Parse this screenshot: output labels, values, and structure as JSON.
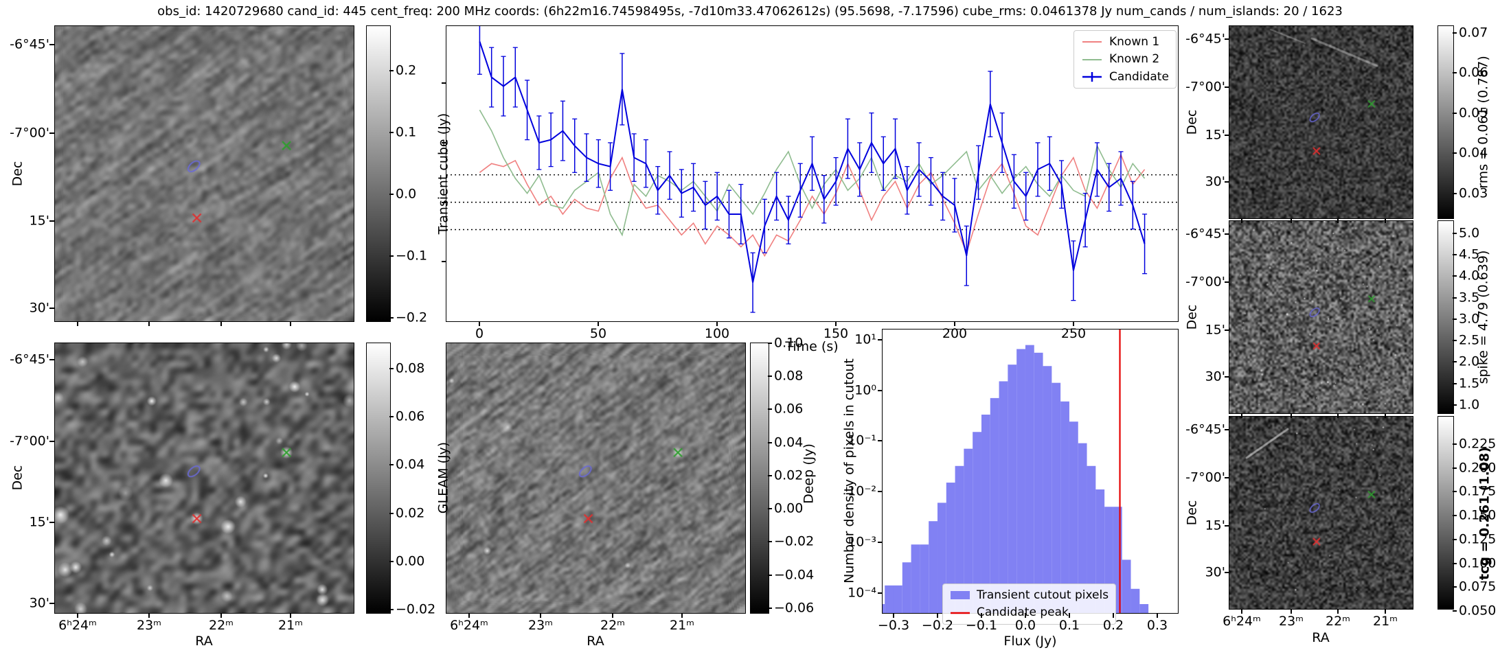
{
  "title": "obs_id: 1420729680 cand_id: 445 cent_freq: 200 MHz coords: (6h22m16.74598495s, -7d10m33.47062612s) (95.5698, -7.17596) cube_rms: 0.0461378 Jy num_cands / num_islands: 20 / 1623",
  "sky": {
    "dec_label": "Dec",
    "ra_label": "RA",
    "dec_ticks": [
      "-6°45'",
      "-7°00'",
      "15'",
      "30'"
    ],
    "ra_ticks": [
      "6ʰ24ᵐ",
      "23ᵐ",
      "22ᵐ",
      "21ᵐ"
    ]
  },
  "colorbars": {
    "transient": {
      "label": "Transient cube (Jy)",
      "ticks": [
        "0.2",
        "0.1",
        "0.0",
        "−0.1",
        "−0.2"
      ]
    },
    "gleam": {
      "label": "GLEAM (Jy)",
      "ticks": [
        "0.08",
        "0.06",
        "0.04",
        "0.02",
        "0.00",
        "−0.02"
      ]
    },
    "deep": {
      "label": "Deep (Jy)",
      "ticks": [
        "0.10",
        "0.08",
        "0.06",
        "0.04",
        "0.02",
        "0.00",
        "−0.02",
        "−0.04",
        "−0.06"
      ]
    },
    "rms": {
      "label": "rms = 0.061 (0.787)",
      "ticks": [
        "0.07",
        "0.06",
        "0.05",
        "0.04",
        "0.03"
      ]
    },
    "spike": {
      "label": "spike = 4.79 (0.639)",
      "ticks": [
        "5.0",
        "4.5",
        "4.0",
        "3.5",
        "3.0",
        "2.5",
        "2.0",
        "1.5",
        "1.0"
      ]
    },
    "tcg": {
      "label": "tcg = 0.261 (1.08)",
      "ticks": [
        "0.225",
        "0.200",
        "0.175",
        "0.150",
        "0.125",
        "0.100",
        "0.075",
        "0.050"
      ]
    }
  },
  "cutout_markers": {
    "known1": {
      "marker": "x",
      "color": "#e03030",
      "fx": 0.475,
      "fy": 0.65
    },
    "known2": {
      "marker": "x",
      "color": "#2f9e2f",
      "fx": 0.775,
      "fy": 0.405
    },
    "candidate": {
      "marker": "ellipse",
      "color": "#6a6ad8",
      "fx": 0.465,
      "fy": 0.475
    }
  },
  "chart_data": [
    {
      "type": "line",
      "xlabel": "Time (s)",
      "ylabel": "Transient cube (Jy)",
      "xlim": [
        -14,
        294
      ],
      "ylim": [
        -0.2,
        0.296
      ],
      "xticks": [
        0,
        50,
        100,
        150,
        200,
        250
      ],
      "xtick_labels": [
        "0",
        "50",
        "100",
        "150",
        "200",
        "250"
      ],
      "hlines": [
        0.046,
        0.0,
        -0.046
      ],
      "legend_position": "upper right",
      "x": [
        0,
        5,
        10,
        15,
        20,
        25,
        30,
        35,
        40,
        45,
        50,
        55,
        60,
        65,
        70,
        75,
        80,
        85,
        90,
        95,
        100,
        105,
        110,
        115,
        120,
        125,
        130,
        135,
        140,
        145,
        150,
        155,
        160,
        165,
        170,
        175,
        180,
        185,
        190,
        195,
        200,
        205,
        210,
        215,
        220,
        225,
        230,
        235,
        240,
        245,
        250,
        255,
        260,
        265,
        270,
        275,
        280
      ],
      "series": [
        {
          "name": "Known 1",
          "color": "#f08080",
          "values": [
            0.05,
            0.065,
            0.06,
            0.07,
            0.03,
            -0.005,
            0.01,
            -0.02,
            0.005,
            -0.01,
            -0.015,
            0.04,
            0.075,
            0.02,
            -0.01,
            -0.005,
            -0.03,
            -0.055,
            -0.035,
            -0.07,
            -0.04,
            -0.055,
            -0.075,
            -0.055,
            -0.09,
            -0.055,
            -0.065,
            -0.03,
            0.01,
            -0.02,
            0.015,
            0.065,
            0.02,
            -0.03,
            0.01,
            0.035,
            -0.01,
            0.03,
            0.05,
            0.005,
            -0.035,
            -0.085,
            -0.02,
            0.04,
            0.065,
            0.015,
            -0.04,
            -0.055,
            -0.005,
            0.045,
            0.075,
            0.02,
            -0.01,
            0.035,
            0.08,
            0.03,
            0.055
          ]
        },
        {
          "name": "Known 2",
          "color": "#8fbc8f",
          "values": [
            0.155,
            0.12,
            0.075,
            0.04,
            0.015,
            0.045,
            -0.005,
            -0.01,
            0.02,
            0.035,
            0.05,
            -0.02,
            -0.055,
            0.03,
            0.01,
            0.045,
            0.035,
            0.02,
            0.035,
            0.01,
            -0.015,
            0.03,
            0.005,
            -0.02,
            0.015,
            0.055,
            0.085,
            0.03,
            -0.01,
            0.03,
            0.055,
            0.02,
            0.04,
            0.075,
            0.02,
            0.045,
            0.035,
            0.065,
            0.03,
            0.045,
            0.065,
            0.085,
            0.02,
            0.045,
            0.015,
            0.04,
            0.06,
            0.03,
            0.01,
            0.045,
            0.02,
            0.01,
            0.095,
            0.055,
            0.025,
            0.065,
            0.04
          ]
        },
        {
          "name": "Candidate",
          "color": "#0000dd",
          "values": [
            0.27,
            0.21,
            0.195,
            0.21,
            0.155,
            0.1,
            0.105,
            0.12,
            0.095,
            0.075,
            0.065,
            0.06,
            0.19,
            0.075,
            0.065,
            0.02,
            0.045,
            0.015,
            0.025,
            -0.005,
            0.01,
            -0.02,
            -0.02,
            -0.135,
            -0.04,
            0.01,
            -0.03,
            0.02,
            0.065,
            0.005,
            0.035,
            0.09,
            0.055,
            0.1,
            0.065,
            0.09,
            0.02,
            0.055,
            0.035,
            0.01,
            -0.005,
            -0.09,
            0.05,
            0.165,
            0.1,
            0.035,
            0.01,
            0.055,
            0.065,
            0.03,
            -0.115,
            -0.03,
            0.055,
            0.025,
            0.04,
            -0.005,
            -0.07
          ],
          "errors": [
            0.055,
            0.05,
            0.05,
            0.05,
            0.05,
            0.045,
            0.045,
            0.05,
            0.045,
            0.04,
            0.04,
            0.04,
            0.06,
            0.04,
            0.04,
            0.04,
            0.04,
            0.04,
            0.04,
            0.04,
            0.04,
            0.04,
            0.05,
            0.05,
            0.045,
            0.04,
            0.04,
            0.045,
            0.045,
            0.04,
            0.04,
            0.05,
            0.045,
            0.05,
            0.045,
            0.05,
            0.04,
            0.045,
            0.04,
            0.04,
            0.045,
            0.05,
            0.045,
            0.055,
            0.05,
            0.045,
            0.04,
            0.045,
            0.045,
            0.04,
            0.05,
            0.045,
            0.045,
            0.04,
            0.045,
            0.04,
            0.05
          ]
        }
      ]
    },
    {
      "type": "bar",
      "xlabel": "Flux (Jy)",
      "ylabel": "Number density of pixels in cutout",
      "yscale": "log",
      "xlim": [
        -0.325,
        0.347
      ],
      "ylim": [
        4e-05,
        15.8
      ],
      "xticks": [
        -0.3,
        -0.2,
        -0.1,
        0.0,
        0.1,
        0.2,
        0.3
      ],
      "xtick_labels": [
        "−0.3",
        "−0.2",
        "−0.1",
        "0.0",
        "0.1",
        "0.2",
        "0.3"
      ],
      "ytick_labels": [
        "10¹",
        "10⁰",
        "10⁻¹",
        "10⁻²",
        "10⁻³",
        "10⁻⁴"
      ],
      "bar_color": "#8181f3",
      "bin_width": 0.02,
      "bin_centers": [
        -0.33,
        -0.31,
        -0.29,
        -0.27,
        -0.25,
        -0.23,
        -0.21,
        -0.19,
        -0.17,
        -0.15,
        -0.13,
        -0.11,
        -0.09,
        -0.07,
        -0.05,
        -0.03,
        -0.01,
        0.01,
        0.03,
        0.05,
        0.07,
        0.09,
        0.11,
        0.13,
        0.15,
        0.17,
        0.19,
        0.21,
        0.23,
        0.25,
        0.27
      ],
      "values": [
        6e-05,
        0.00014,
        0.00014,
        0.0004,
        0.0009,
        0.0009,
        0.0026,
        0.006,
        0.015,
        0.032,
        0.07,
        0.15,
        0.33,
        0.7,
        1.5,
        3.2,
        6.5,
        7.8,
        5.5,
        3.0,
        1.4,
        0.6,
        0.24,
        0.09,
        0.032,
        0.011,
        0.005,
        0.005,
        0.00045,
        0.00012,
        6e-05
      ],
      "vline": {
        "x": 0.215,
        "color": "#e50000"
      },
      "legend": [
        "Transient cutout pixels",
        "Candidate peak"
      ]
    }
  ]
}
